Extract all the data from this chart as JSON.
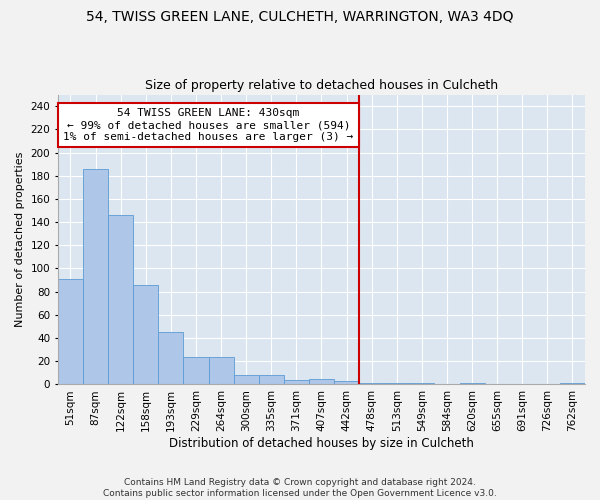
{
  "title1": "54, TWISS GREEN LANE, CULCHETH, WARRINGTON, WA3 4DQ",
  "title2": "Size of property relative to detached houses in Culcheth",
  "xlabel": "Distribution of detached houses by size in Culcheth",
  "ylabel": "Number of detached properties",
  "footer1": "Contains HM Land Registry data © Crown copyright and database right 2024.",
  "footer2": "Contains public sector information licensed under the Open Government Licence v3.0.",
  "categories": [
    "51sqm",
    "87sqm",
    "122sqm",
    "158sqm",
    "193sqm",
    "229sqm",
    "264sqm",
    "300sqm",
    "335sqm",
    "371sqm",
    "407sqm",
    "442sqm",
    "478sqm",
    "513sqm",
    "549sqm",
    "584sqm",
    "620sqm",
    "655sqm",
    "691sqm",
    "726sqm",
    "762sqm"
  ],
  "values": [
    91,
    186,
    146,
    86,
    45,
    24,
    24,
    8,
    8,
    4,
    5,
    3,
    1,
    1,
    1,
    0,
    1,
    0,
    0,
    0,
    1
  ],
  "bar_color": "#aec6e8",
  "bar_edge_color": "#5b9bd5",
  "background_color": "#dce6f1",
  "grid_color": "#ffffff",
  "vline_x": 11.5,
  "vline_color": "#cc0000",
  "annotation_line1": "54 TWISS GREEN LANE: 430sqm",
  "annotation_line2": "← 99% of detached houses are smaller (594)",
  "annotation_line3": "1% of semi-detached houses are larger (3) →",
  "annotation_box_color": "#cc0000",
  "ylim": [
    0,
    250
  ],
  "yticks": [
    0,
    20,
    40,
    60,
    80,
    100,
    120,
    140,
    160,
    180,
    200,
    220,
    240
  ],
  "title1_fontsize": 10,
  "title2_fontsize": 9,
  "xlabel_fontsize": 8.5,
  "ylabel_fontsize": 8,
  "tick_fontsize": 7.5,
  "annotation_fontsize": 8
}
